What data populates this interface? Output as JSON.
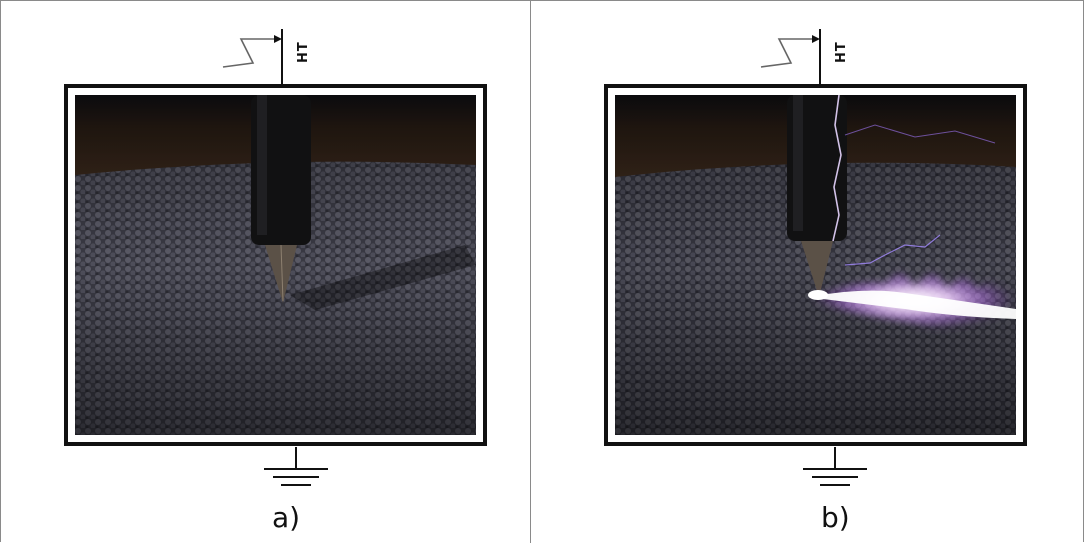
{
  "panels": [
    {
      "id": "a",
      "caption": "a)",
      "supply_label": "HT",
      "discharge": false
    },
    {
      "id": "b",
      "caption": "b)",
      "supply_label": "HT",
      "discharge": true
    }
  ]
}
